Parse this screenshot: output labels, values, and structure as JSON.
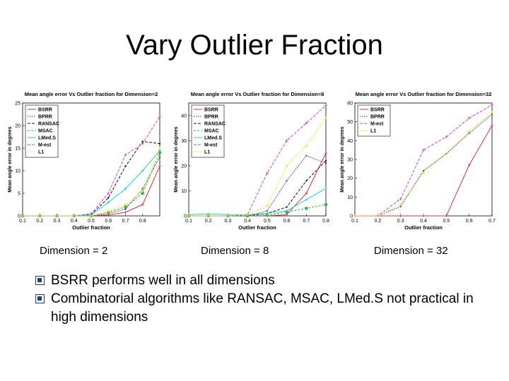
{
  "slide": {
    "title": "Vary Outlier Fraction",
    "dimension_labels": [
      "Dimension = 2",
      "Dimension = 8",
      "Dimension = 32"
    ],
    "bullets": [
      "BSRR performs well in all dimensions",
      "Combinatorial algorithms like RANSAC, MSAC, LMed.S not practical in high dimensions"
    ]
  },
  "colors": {
    "BSRR": "#e03030",
    "BPRR": "#2a2a8a",
    "RANSAC": "#111111",
    "MSAC": "#3cb043",
    "LMed.S": "#22cde0",
    "M-est": "#d040d0",
    "L1": "#e6e600"
  },
  "chart_data": [
    {
      "type": "line",
      "title": "Mean angle error Vs Outlier fraction for Dimension=2",
      "xlabel": "Outlier fraction",
      "ylabel": "Mean angle error in degrees",
      "xlim": [
        0.1,
        0.9
      ],
      "ylim": [
        0,
        25
      ],
      "xticks": [
        0.1,
        0.2,
        0.3,
        0.4,
        0.5,
        0.6,
        0.7,
        0.8
      ],
      "yticks": [
        0,
        5,
        10,
        15,
        20,
        25
      ],
      "legend_position": "top-left",
      "x": [
        0.1,
        0.2,
        0.3,
        0.4,
        0.5,
        0.6,
        0.7,
        0.8,
        0.9
      ],
      "series": [
        {
          "name": "BSRR",
          "values": [
            0,
            0,
            0,
            0,
            0,
            0.2,
            0.8,
            2.5,
            11
          ]
        },
        {
          "name": "BPRR",
          "values": [
            0,
            0,
            0,
            0,
            0,
            0.5,
            1.5,
            6,
            13
          ]
        },
        {
          "name": "RANSAC",
          "values": [
            0,
            0,
            0,
            0,
            0.3,
            4,
            11,
            16.5,
            16
          ]
        },
        {
          "name": "MSAC",
          "values": [
            0,
            0,
            0,
            0,
            0,
            0.8,
            2,
            5,
            14
          ]
        },
        {
          "name": "LMed.S",
          "values": [
            0,
            0,
            0,
            0,
            0.2,
            3,
            6,
            10,
            14.5
          ]
        },
        {
          "name": "M-est",
          "values": [
            0,
            0,
            0,
            0,
            0.5,
            5,
            13.5,
            16,
            22
          ]
        },
        {
          "name": "L1",
          "values": [
            0,
            0,
            0,
            0,
            0,
            1,
            2.5,
            5.5,
            15
          ]
        }
      ]
    },
    {
      "type": "line",
      "title": "Mean angle error Vs Outlier fraction for Dimension=8",
      "xlabel": "Outlier fraction",
      "ylabel": "Mean angle error in degrees",
      "xlim": [
        0.1,
        0.8
      ],
      "ylim": [
        0,
        45
      ],
      "xticks": [
        0.1,
        0.2,
        0.3,
        0.4,
        0.5,
        0.6,
        0.7,
        0.8
      ],
      "yticks": [
        0,
        10,
        20,
        30,
        40
      ],
      "legend_position": "top-left",
      "x": [
        0.1,
        0.2,
        0.3,
        0.4,
        0.5,
        0.6,
        0.7,
        0.8
      ],
      "series": [
        {
          "name": "BSRR",
          "values": [
            0,
            0,
            0,
            0,
            0,
            0.5,
            9,
            25
          ]
        },
        {
          "name": "BPRR",
          "values": [
            0,
            0,
            0,
            0,
            2,
            14,
            24,
            21
          ]
        },
        {
          "name": "RANSAC",
          "values": [
            0,
            0,
            0,
            0,
            1,
            3.5,
            14,
            22
          ]
        },
        {
          "name": "MSAC",
          "values": [
            0,
            0,
            0,
            0,
            0.3,
            1.5,
            3,
            4.5
          ]
        },
        {
          "name": "LMed.S",
          "values": [
            0.5,
            0.8,
            0.5,
            0.5,
            1,
            2,
            6.5,
            11
          ]
        },
        {
          "name": "M-est",
          "values": [
            0,
            0,
            0,
            0.5,
            17,
            30,
            37,
            44
          ]
        },
        {
          "name": "L1",
          "values": [
            0,
            0,
            0,
            0.5,
            4,
            20,
            28,
            39
          ]
        }
      ]
    },
    {
      "type": "line",
      "title": "Mean angle error Vs Outlier fraction for Dimension=32",
      "xlabel": "Outlier fraction",
      "ylabel": "Mean angle error in degrees",
      "xlim": [
        0.1,
        0.7
      ],
      "ylim": [
        0,
        60
      ],
      "xticks": [
        0.1,
        0.2,
        0.3,
        0.4,
        0.5,
        0.6,
        0.7
      ],
      "yticks": [
        0,
        10,
        20,
        30,
        40,
        50,
        60
      ],
      "legend_position": "top-left",
      "x": [
        0.1,
        0.2,
        0.3,
        0.4,
        0.5,
        0.6,
        0.7
      ],
      "series": [
        {
          "name": "BSRR",
          "values": [
            0,
            0,
            0,
            0,
            0,
            27,
            48
          ]
        },
        {
          "name": "BPRR",
          "values": [
            0,
            0,
            5,
            24,
            33,
            44,
            54
          ]
        },
        {
          "name": "M-est",
          "values": [
            0,
            0,
            9,
            35,
            42,
            52,
            59
          ]
        },
        {
          "name": "L1",
          "values": [
            0,
            0,
            6,
            23,
            33,
            45,
            55
          ]
        }
      ]
    }
  ]
}
